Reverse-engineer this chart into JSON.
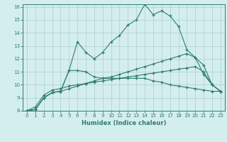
{
  "xlabel": "Humidex (Indice chaleur)",
  "x": [
    0,
    1,
    2,
    3,
    4,
    5,
    6,
    7,
    8,
    9,
    10,
    11,
    12,
    13,
    14,
    15,
    16,
    17,
    18,
    19,
    20,
    21,
    22,
    23
  ],
  "line1": [
    8.0,
    8.1,
    9.0,
    9.4,
    9.5,
    11.1,
    13.3,
    12.5,
    12.0,
    12.5,
    13.3,
    13.8,
    14.6,
    15.0,
    16.2,
    15.4,
    15.7,
    15.3,
    14.5,
    12.7,
    12.1,
    10.8,
    10.0,
    9.5
  ],
  "line2": [
    8.0,
    8.1,
    9.0,
    9.4,
    9.5,
    11.1,
    11.1,
    11.0,
    10.6,
    10.5,
    10.5,
    10.5,
    10.5,
    10.5,
    10.5,
    10.3,
    10.2,
    10.0,
    9.9,
    9.8,
    9.7,
    9.6,
    9.5,
    9.5
  ],
  "line3": [
    8.0,
    8.1,
    9.0,
    9.4,
    9.5,
    9.7,
    9.9,
    10.1,
    10.3,
    10.5,
    10.6,
    10.8,
    11.0,
    11.2,
    11.4,
    11.6,
    11.8,
    12.0,
    12.2,
    12.4,
    12.1,
    11.5,
    10.0,
    9.5
  ],
  "line4": [
    8.0,
    8.3,
    9.2,
    9.6,
    9.7,
    9.9,
    10.0,
    10.1,
    10.2,
    10.3,
    10.4,
    10.5,
    10.6,
    10.7,
    10.8,
    10.9,
    11.0,
    11.1,
    11.2,
    11.3,
    11.4,
    11.0,
    10.0,
    9.5
  ],
  "ylim": [
    8,
    16
  ],
  "xlim": [
    -0.5,
    23.5
  ],
  "yticks": [
    8,
    9,
    10,
    11,
    12,
    13,
    14,
    15,
    16
  ],
  "xticks": [
    0,
    1,
    2,
    3,
    4,
    5,
    6,
    7,
    8,
    9,
    10,
    11,
    12,
    13,
    14,
    15,
    16,
    17,
    18,
    19,
    20,
    21,
    22,
    23
  ],
  "line_color": "#2e7d6e",
  "bg_color": "#d4eeed",
  "grid_color": "#aacfcc"
}
